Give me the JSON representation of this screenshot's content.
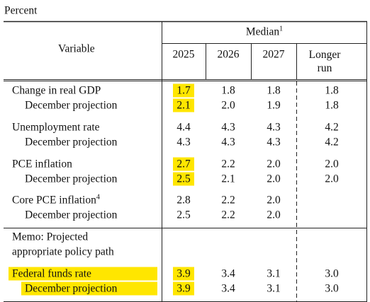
{
  "header": {
    "unit": "Percent",
    "variable": "Variable",
    "median": "Median",
    "median_note": "1",
    "columns": [
      "2025",
      "2026",
      "2027",
      "Longer run"
    ]
  },
  "rows": [
    {
      "label": "Change in real GDP",
      "values": [
        "1.7",
        "1.8",
        "1.8",
        "1.8"
      ],
      "highlight_values": [
        0
      ]
    },
    {
      "label": "December projection",
      "indent": true,
      "values": [
        "2.1",
        "2.0",
        "1.9",
        "1.8"
      ],
      "highlight_values": [
        0
      ]
    },
    {
      "label": "Unemployment rate",
      "values": [
        "4.4",
        "4.3",
        "4.3",
        "4.2"
      ]
    },
    {
      "label": "December projection",
      "indent": true,
      "values": [
        "4.3",
        "4.3",
        "4.3",
        "4.2"
      ]
    },
    {
      "label": "PCE inflation",
      "values": [
        "2.7",
        "2.2",
        "2.0",
        "2.0"
      ],
      "highlight_values": [
        0
      ]
    },
    {
      "label": "December projection",
      "indent": true,
      "values": [
        "2.5",
        "2.1",
        "2.0",
        "2.0"
      ],
      "highlight_values": [
        0
      ]
    },
    {
      "label": "Core PCE inflation",
      "note": "4",
      "values": [
        "2.8",
        "2.2",
        "2.0"
      ]
    },
    {
      "label": "December projection",
      "indent": true,
      "values": [
        "2.5",
        "2.2",
        "2.0"
      ]
    }
  ],
  "memo": {
    "label_lines": [
      "Memo: Projected",
      "appropriate policy path"
    ],
    "rows": [
      {
        "label": "Federal funds rate",
        "highlight_label": true,
        "values": [
          "3.9",
          "3.4",
          "3.1",
          "3.0"
        ],
        "highlight_values": [
          0
        ]
      },
      {
        "label": "December projection",
        "indent": true,
        "highlight_label": true,
        "values": [
          "3.9",
          "3.4",
          "3.1",
          "3.0"
        ],
        "highlight_values": [
          0
        ]
      }
    ]
  }
}
